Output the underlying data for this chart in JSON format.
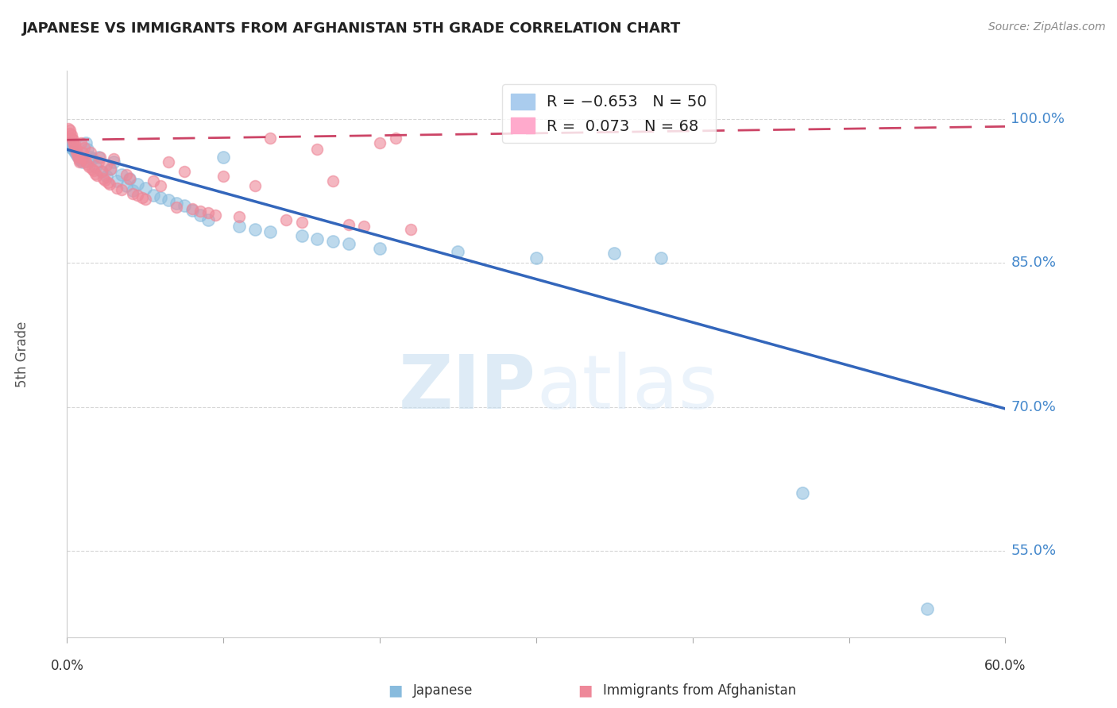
{
  "title": "JAPANESE VS IMMIGRANTS FROM AFGHANISTAN 5TH GRADE CORRELATION CHART",
  "source": "Source: ZipAtlas.com",
  "ylabel": "5th Grade",
  "ytick_labels": [
    "55.0%",
    "70.0%",
    "85.0%",
    "100.0%"
  ],
  "ytick_values": [
    0.55,
    0.7,
    0.85,
    1.0
  ],
  "xmin": 0.0,
  "xmax": 0.6,
  "ymin": 0.46,
  "ymax": 1.05,
  "blue_color": "#88bbdd",
  "pink_color": "#ee8899",
  "blue_line_color": "#3366bb",
  "pink_line_color": "#cc4466",
  "blue_scatter": [
    [
      0.001,
      0.975
    ],
    [
      0.002,
      0.972
    ],
    [
      0.003,
      0.97
    ],
    [
      0.004,
      0.968
    ],
    [
      0.005,
      0.966
    ],
    [
      0.006,
      0.963
    ],
    [
      0.007,
      0.961
    ],
    [
      0.008,
      0.959
    ],
    [
      0.009,
      0.957
    ],
    [
      0.01,
      0.955
    ],
    [
      0.012,
      0.975
    ],
    [
      0.013,
      0.968
    ],
    [
      0.015,
      0.96
    ],
    [
      0.016,
      0.958
    ],
    [
      0.018,
      0.95
    ],
    [
      0.02,
      0.96
    ],
    [
      0.022,
      0.945
    ],
    [
      0.025,
      0.94
    ],
    [
      0.028,
      0.948
    ],
    [
      0.03,
      0.955
    ],
    [
      0.032,
      0.935
    ],
    [
      0.035,
      0.942
    ],
    [
      0.038,
      0.93
    ],
    [
      0.04,
      0.938
    ],
    [
      0.042,
      0.925
    ],
    [
      0.045,
      0.932
    ],
    [
      0.05,
      0.928
    ],
    [
      0.055,
      0.92
    ],
    [
      0.06,
      0.918
    ],
    [
      0.065,
      0.915
    ],
    [
      0.07,
      0.912
    ],
    [
      0.075,
      0.91
    ],
    [
      0.08,
      0.905
    ],
    [
      0.085,
      0.9
    ],
    [
      0.09,
      0.895
    ],
    [
      0.1,
      0.96
    ],
    [
      0.11,
      0.888
    ],
    [
      0.12,
      0.885
    ],
    [
      0.13,
      0.882
    ],
    [
      0.15,
      0.878
    ],
    [
      0.16,
      0.875
    ],
    [
      0.17,
      0.872
    ],
    [
      0.18,
      0.87
    ],
    [
      0.2,
      0.865
    ],
    [
      0.25,
      0.862
    ],
    [
      0.3,
      0.855
    ],
    [
      0.35,
      0.86
    ],
    [
      0.38,
      0.855
    ],
    [
      0.47,
      0.61
    ],
    [
      0.55,
      0.49
    ]
  ],
  "pink_scatter": [
    [
      0.001,
      0.99
    ],
    [
      0.002,
      0.988
    ],
    [
      0.002,
      0.985
    ],
    [
      0.003,
      0.983
    ],
    [
      0.003,
      0.98
    ],
    [
      0.004,
      0.978
    ],
    [
      0.004,
      0.975
    ],
    [
      0.005,
      0.973
    ],
    [
      0.005,
      0.97
    ],
    [
      0.006,
      0.968
    ],
    [
      0.006,
      0.965
    ],
    [
      0.007,
      0.962
    ],
    [
      0.007,
      0.96
    ],
    [
      0.008,
      0.957
    ],
    [
      0.008,
      0.955
    ],
    [
      0.009,
      0.975
    ],
    [
      0.009,
      0.96
    ],
    [
      0.01,
      0.965
    ],
    [
      0.01,
      0.958
    ],
    [
      0.011,
      0.97
    ],
    [
      0.012,
      0.955
    ],
    [
      0.013,
      0.953
    ],
    [
      0.014,
      0.95
    ],
    [
      0.015,
      0.965
    ],
    [
      0.016,
      0.948
    ],
    [
      0.017,
      0.946
    ],
    [
      0.018,
      0.943
    ],
    [
      0.019,
      0.941
    ],
    [
      0.02,
      0.955
    ],
    [
      0.021,
      0.96
    ],
    [
      0.022,
      0.945
    ],
    [
      0.023,
      0.938
    ],
    [
      0.024,
      0.936
    ],
    [
      0.025,
      0.952
    ],
    [
      0.026,
      0.934
    ],
    [
      0.027,
      0.932
    ],
    [
      0.028,
      0.948
    ],
    [
      0.03,
      0.958
    ],
    [
      0.032,
      0.928
    ],
    [
      0.035,
      0.926
    ],
    [
      0.038,
      0.942
    ],
    [
      0.04,
      0.938
    ],
    [
      0.042,
      0.922
    ],
    [
      0.045,
      0.92
    ],
    [
      0.048,
      0.918
    ],
    [
      0.05,
      0.916
    ],
    [
      0.055,
      0.935
    ],
    [
      0.06,
      0.93
    ],
    [
      0.065,
      0.955
    ],
    [
      0.07,
      0.908
    ],
    [
      0.075,
      0.945
    ],
    [
      0.08,
      0.906
    ],
    [
      0.085,
      0.904
    ],
    [
      0.09,
      0.902
    ],
    [
      0.095,
      0.9
    ],
    [
      0.1,
      0.94
    ],
    [
      0.11,
      0.898
    ],
    [
      0.12,
      0.93
    ],
    [
      0.13,
      0.98
    ],
    [
      0.14,
      0.895
    ],
    [
      0.15,
      0.892
    ],
    [
      0.16,
      0.968
    ],
    [
      0.17,
      0.935
    ],
    [
      0.18,
      0.89
    ],
    [
      0.19,
      0.888
    ],
    [
      0.2,
      0.975
    ],
    [
      0.21,
      0.98
    ],
    [
      0.22,
      0.885
    ]
  ],
  "blue_regline_x": [
    0.0,
    0.6
  ],
  "blue_regline_y": [
    0.968,
    0.698
  ],
  "pink_regline_x": [
    0.0,
    0.6
  ],
  "pink_regline_y": [
    0.978,
    0.992
  ],
  "watermark_zip": "ZIP",
  "watermark_atlas": "atlas",
  "background_color": "#ffffff",
  "grid_color": "#cccccc",
  "legend_items": [
    {
      "label": "R = -0.653   N = 50",
      "color": "#aaccee"
    },
    {
      "label": "R =  0.073   N = 68",
      "color": "#ffaacc"
    }
  ],
  "bottom_legend": [
    {
      "label": "Japanese",
      "color": "#88bbdd"
    },
    {
      "label": "Immigrants from Afghanistan",
      "color": "#ee8899"
    }
  ]
}
